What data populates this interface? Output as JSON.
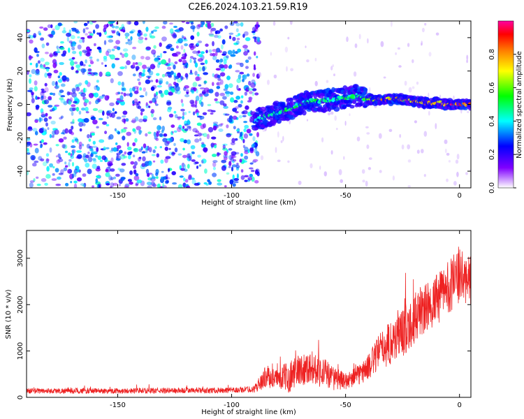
{
  "figure_title": "C2E6.2024.103.21.59.R19",
  "chart_data": [
    {
      "type": "heatmap",
      "title": "C2E6.2024.103.21.59.R19",
      "xlabel": "Height of straight line (km)",
      "ylabel": "Frequency (Hz)",
      "xlim": [
        -190,
        5
      ],
      "ylim": [
        -50,
        50
      ],
      "xticks": [
        -150,
        -100,
        -50,
        0
      ],
      "yticks": [
        -40,
        -20,
        0,
        20,
        40
      ],
      "grid": false,
      "colorbar": {
        "label": "Normalized spectral amplitude",
        "range": [
          0,
          1
        ],
        "ticks": [
          0.0,
          0.2,
          0.4,
          0.6,
          0.8
        ],
        "tick_labels": [
          "0.0",
          "0.2",
          "0.4",
          "0.6",
          "0.8"
        ],
        "colormap": [
          "#ffffff",
          "#8000ff",
          "#0000ff",
          "#00ffff",
          "#00ff00",
          "#ffff00",
          "#ff8000",
          "#ff0000",
          "#ff00a0"
        ]
      },
      "noise_region_x": [
        -190,
        -88
      ],
      "signal_ridge": [
        {
          "x": -90,
          "y": -10,
          "amp": 0.35
        },
        {
          "x": -85,
          "y": -7,
          "amp": 0.45
        },
        {
          "x": -80,
          "y": -5,
          "amp": 0.4
        },
        {
          "x": -75,
          "y": -3,
          "amp": 0.5
        },
        {
          "x": -70,
          "y": 0,
          "amp": 0.45
        },
        {
          "x": -65,
          "y": 2,
          "amp": 0.5
        },
        {
          "x": -60,
          "y": 2,
          "amp": 0.45
        },
        {
          "x": -55,
          "y": 3,
          "amp": 0.45
        },
        {
          "x": -50,
          "y": 4,
          "amp": 0.5
        },
        {
          "x": -45,
          "y": 5,
          "amp": 0.45
        },
        {
          "x": -40,
          "y": 3,
          "amp": 0.55
        },
        {
          "x": -35,
          "y": 3,
          "amp": 0.8
        },
        {
          "x": -30,
          "y": 3,
          "amp": 0.75
        },
        {
          "x": -25,
          "y": 3,
          "amp": 0.7
        },
        {
          "x": -20,
          "y": 2,
          "amp": 0.8
        },
        {
          "x": -15,
          "y": 1,
          "amp": 0.75
        },
        {
          "x": -10,
          "y": 1,
          "amp": 0.7
        },
        {
          "x": -5,
          "y": 0,
          "amp": 0.85
        },
        {
          "x": 0,
          "y": 0,
          "amp": 0.9
        },
        {
          "x": 5,
          "y": 0,
          "amp": 0.85
        }
      ]
    },
    {
      "type": "line",
      "xlabel": "Height of straight line (km)",
      "ylabel": "SNR (10 * v/v)",
      "xlim": [
        -190,
        5
      ],
      "ylim": [
        0,
        3600
      ],
      "xticks": [
        -150,
        -100,
        -50,
        0
      ],
      "yticks": [
        0,
        1000,
        2000,
        3000
      ],
      "grid": false,
      "series": [
        {
          "color": "#ee2222",
          "envelope": [
            {
              "x": -190,
              "base": 140,
              "spread": 120
            },
            {
              "x": -150,
              "base": 140,
              "spread": 120
            },
            {
              "x": -100,
              "base": 150,
              "spread": 120
            },
            {
              "x": -90,
              "base": 180,
              "spread": 150
            },
            {
              "x": -85,
              "base": 450,
              "spread": 500
            },
            {
              "x": -80,
              "base": 400,
              "spread": 400
            },
            {
              "x": -75,
              "base": 450,
              "spread": 700
            },
            {
              "x": -70,
              "base": 600,
              "spread": 700
            },
            {
              "x": -65,
              "base": 650,
              "spread": 700
            },
            {
              "x": -60,
              "base": 550,
              "spread": 700
            },
            {
              "x": -55,
              "base": 400,
              "spread": 500
            },
            {
              "x": -50,
              "base": 350,
              "spread": 350
            },
            {
              "x": -45,
              "base": 450,
              "spread": 450
            },
            {
              "x": -40,
              "base": 650,
              "spread": 550
            },
            {
              "x": -35,
              "base": 1000,
              "spread": 800
            },
            {
              "x": -30,
              "base": 1200,
              "spread": 1000
            },
            {
              "x": -25,
              "base": 1400,
              "spread": 1100
            },
            {
              "x": -20,
              "base": 1700,
              "spread": 1100
            },
            {
              "x": -15,
              "base": 1900,
              "spread": 1100
            },
            {
              "x": -10,
              "base": 2100,
              "spread": 1100
            },
            {
              "x": -5,
              "base": 2400,
              "spread": 1200
            },
            {
              "x": 0,
              "base": 2600,
              "spread": 1200
            },
            {
              "x": 5,
              "base": 2500,
              "spread": 1000
            }
          ]
        }
      ]
    }
  ]
}
